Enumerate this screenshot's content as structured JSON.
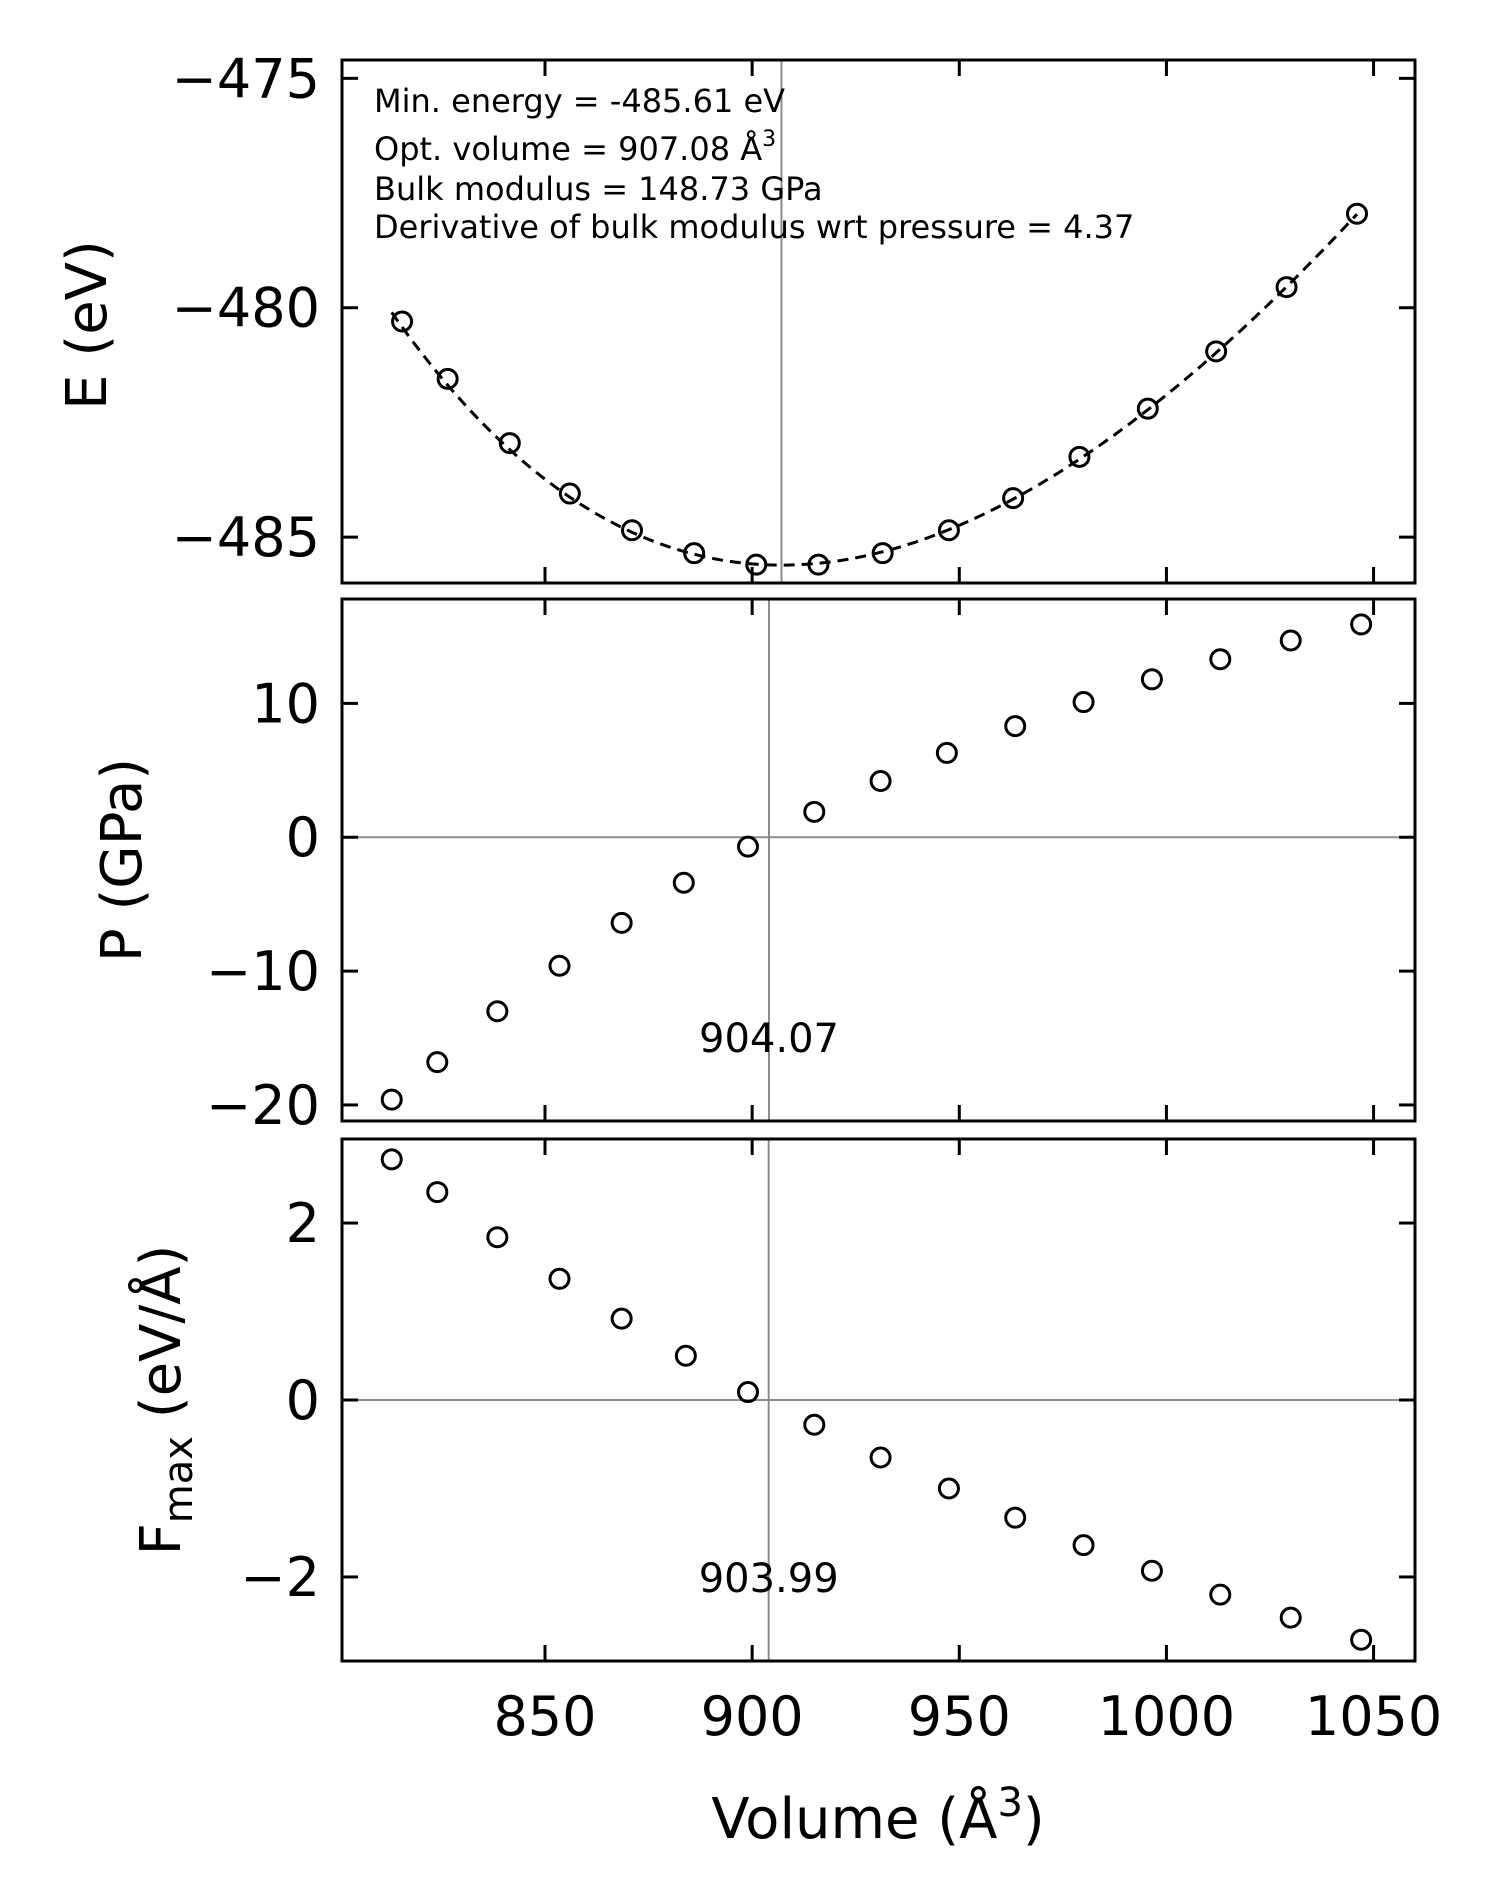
{
  "chart_data": [
    {
      "type": "scatter",
      "name": "energy",
      "ylabel": "E (eV)",
      "ylim": [
        -486.0,
        -474.6
      ],
      "yticks": [
        -475,
        -480,
        -485
      ],
      "ytick_labels": [
        "−475",
        "−480",
        "−485"
      ],
      "vline_x": 907.08,
      "fit_curve": {
        "style": "dashed",
        "V0": 907.08,
        "E0": -485.61,
        "B0_GPa": 148.73,
        "B0_prime": 4.37,
        "x_range": [
          813,
          1046
        ]
      },
      "annotations": [
        "Min. energy = -485.61 eV",
        "Opt. volume = 907.08 Å",
        "Bulk modulus = 148.73 GPa",
        "Derivative of bulk modulus wrt pressure = 4.37"
      ],
      "annotation_superscript": "3",
      "x": [
        815.5,
        826.5,
        841.5,
        856,
        871,
        886,
        901,
        916,
        931.5,
        947.5,
        963,
        979,
        995.5,
        1012,
        1029,
        1046
      ],
      "y": [
        -480.3,
        -481.55,
        -482.95,
        -484.05,
        -484.85,
        -485.35,
        -485.6,
        -485.6,
        -485.35,
        -484.85,
        -484.15,
        -483.25,
        -482.2,
        -480.95,
        -479.55,
        -477.95
      ]
    },
    {
      "type": "scatter",
      "name": "pressure",
      "ylabel": "P (GPa)",
      "ylim": [
        -21.2,
        17.8
      ],
      "yticks": [
        10,
        0,
        -10,
        -20
      ],
      "ytick_labels": [
        "10",
        "0",
        "−10",
        "−20"
      ],
      "hline_y": 0,
      "vline_x": 904.07,
      "vline_label": "904.07",
      "x": [
        813,
        824,
        838.5,
        853.5,
        868.5,
        883.5,
        899,
        915,
        931,
        947,
        963.5,
        980,
        996.5,
        1013,
        1030,
        1047
      ],
      "y": [
        -19.6,
        -16.8,
        -13.0,
        -9.6,
        -6.4,
        -3.4,
        -0.7,
        1.9,
        4.2,
        6.3,
        8.3,
        10.1,
        11.8,
        13.3,
        14.7,
        15.9
      ]
    },
    {
      "type": "scatter",
      "name": "max-force",
      "ylabel": "F",
      "ylabel_subscript": "max",
      "ylabel_suffix": " (eV/Å)",
      "ylim": [
        -2.95,
        2.95
      ],
      "yticks": [
        2,
        0,
        -2
      ],
      "ytick_labels": [
        "2",
        "0",
        "−2"
      ],
      "hline_y": 0,
      "vline_x": 903.99,
      "vline_label": "903.99",
      "x": [
        813,
        824,
        838.5,
        853.5,
        868.5,
        884,
        899,
        915,
        931,
        947.5,
        963.5,
        980,
        996.5,
        1013,
        1030,
        1047
      ],
      "y": [
        2.72,
        2.35,
        1.84,
        1.37,
        0.92,
        0.5,
        0.09,
        -0.28,
        -0.65,
        -1.0,
        -1.33,
        -1.64,
        -1.93,
        -2.2,
        -2.46,
        -2.71
      ]
    }
  ],
  "x_axis": {
    "label": "Volume (Å",
    "label_superscript": "3",
    "label_close": ")",
    "xlim": [
      801,
      1060
    ],
    "ticks": [
      850,
      900,
      950,
      1000,
      1050
    ],
    "tick_labels": [
      "850",
      "900",
      "950",
      "1000",
      "1050"
    ]
  }
}
